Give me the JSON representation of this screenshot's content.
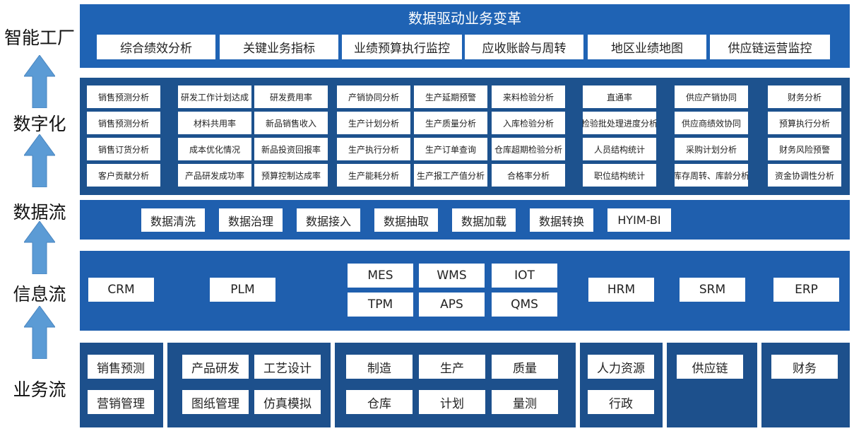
{
  "colors": {
    "top": "#1f63b4",
    "metrics": "#1d528e",
    "dataflow": "#1f5fae",
    "info": "#1f5fae",
    "business": "#1d508c",
    "arrow": "#5b9bd5"
  },
  "left_labels": [
    "智能工厂",
    "数字化",
    "数据流",
    "信息流",
    "业务流"
  ],
  "top": {
    "title": "数据驱动业务变革",
    "nav": [
      "综合绩效分析",
      "关键业务指标",
      "业绩预算执行监控",
      "应收账龄与周转",
      "地区业绩地图",
      "供应链运营监控"
    ]
  },
  "metrics": {
    "columns": [
      [
        "销售预测分析",
        "销售预测分析",
        "销售订货分析",
        "客户贡献分析"
      ],
      [
        "研发工作计划达成",
        "材料共用率",
        "成本优化情况",
        "产品研发成功率"
      ],
      [
        "研发费用率",
        "新品销售收入",
        "新品投资回报率",
        "预算控制达成率"
      ],
      [
        "产销协同分析",
        "生产计划分析",
        "生产执行分析",
        "生产能耗分析"
      ],
      [
        "生产延期预警",
        "生产质量分析",
        "生产订单查询",
        "生产报工产值分析"
      ],
      [
        "来料检验分析",
        "入库检验分析",
        "仓库超期检验分析",
        "合格率分析"
      ],
      [
        "直通率",
        "检验批处理进度分析",
        "人员结构统计",
        "职位结构统计"
      ],
      [
        "供应产销协同",
        "供应商绩效协同",
        "采购计划分析",
        "库存周转、库龄分析"
      ],
      [
        "财务分析",
        "预算执行分析",
        "财务风险预警",
        "资金协调性分析"
      ]
    ]
  },
  "dataflow": [
    "数据清洗",
    "数据治理",
    "数据接入",
    "数据抽取",
    "数据加载",
    "数据转换",
    "HYIM-BI"
  ],
  "info": [
    "CRM",
    "PLM",
    "MES",
    "TPM",
    "WMS",
    "APS",
    "IOT",
    "QMS",
    "HRM",
    "SRM",
    "ERP"
  ],
  "business": [
    "销售预测",
    "营销管理",
    "产品研发",
    "工艺设计",
    "图纸管理",
    "仿真模拟",
    "制造",
    "生产",
    "质量",
    "仓库",
    "计划",
    "量测",
    "人力资源",
    "行政",
    "供应链",
    "财务"
  ]
}
